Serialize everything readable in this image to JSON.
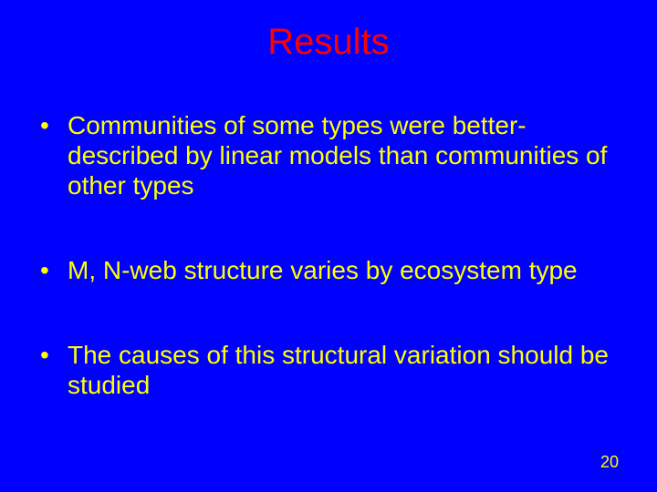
{
  "slide": {
    "background_color": "#0000ff",
    "title": "Results",
    "title_color": "#ff0000",
    "title_fontsize": 40,
    "body_fontsize": 28,
    "bullet_color": "#ffff00",
    "text_color": "#ffff00",
    "bullets": [
      "Communities of some types were better-described by linear models than communities of other types",
      "M, N-web structure varies by ecosystem type",
      "The causes of this structural variation should be studied"
    ],
    "page_number": "20",
    "page_number_color": "#ffff00",
    "page_number_fontsize": 18,
    "font_family": "Arial"
  }
}
